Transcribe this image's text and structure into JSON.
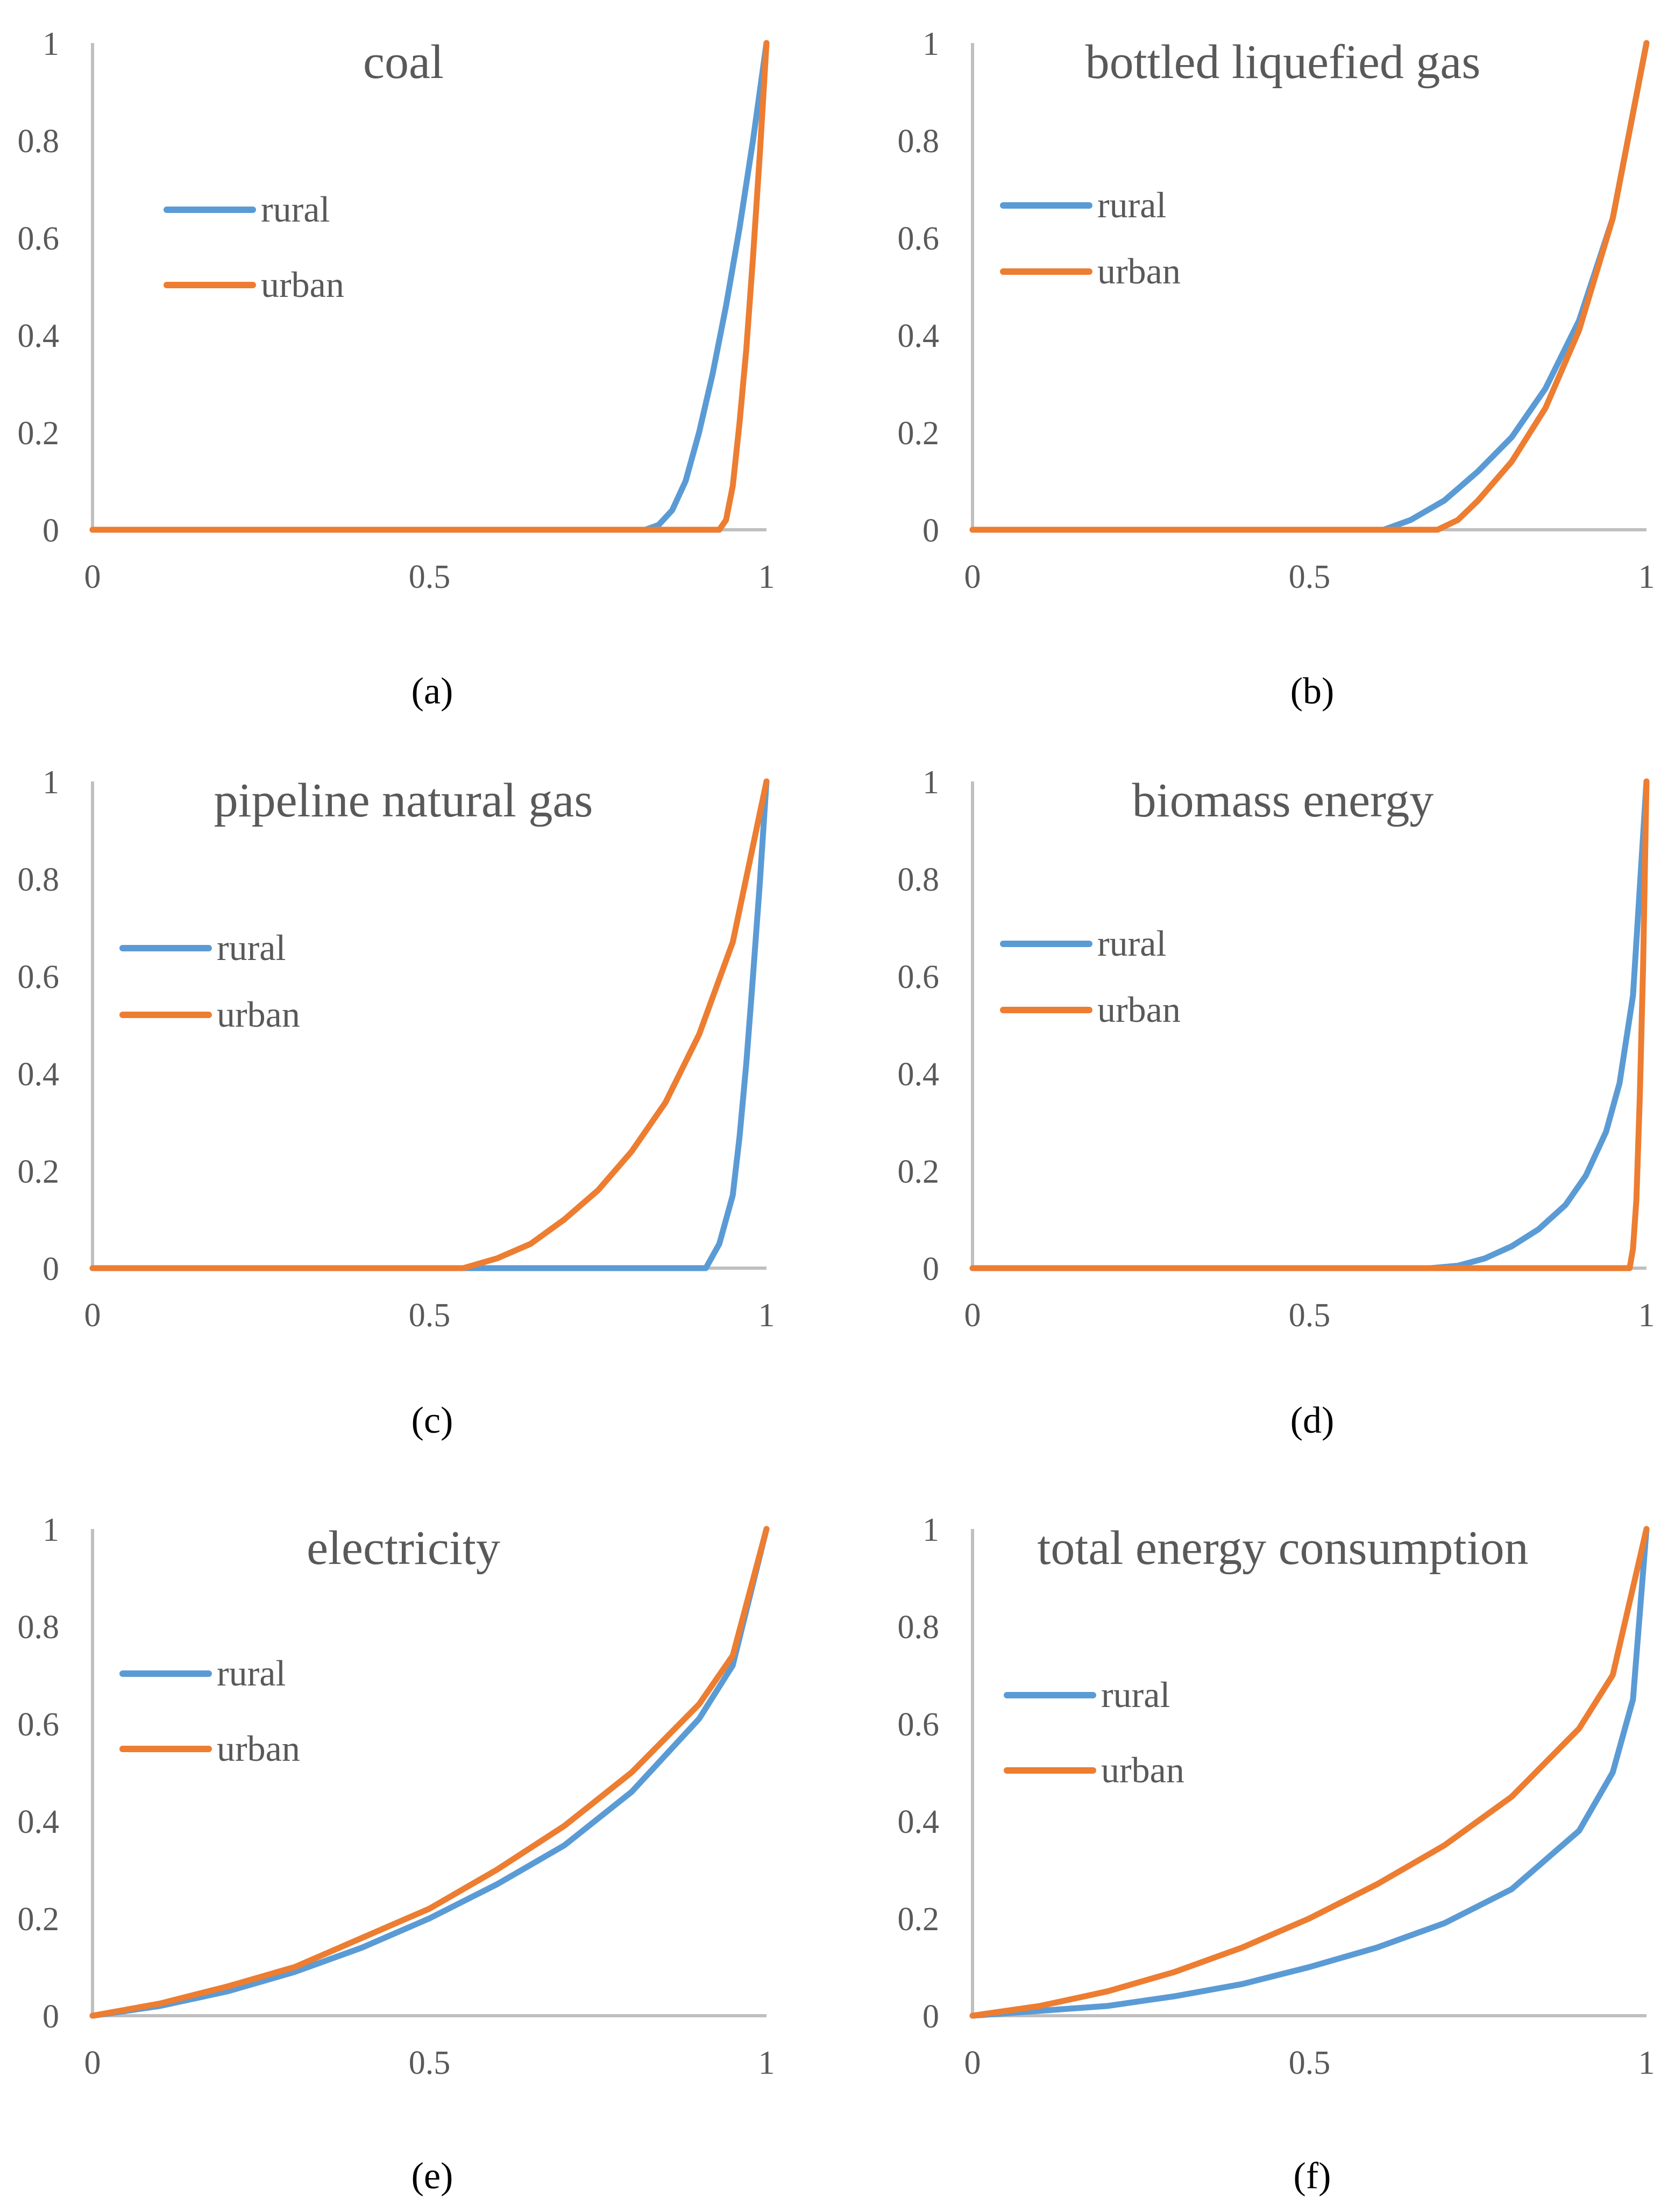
{
  "chart_data": [
    {
      "id": "a",
      "type": "line",
      "title": "coal",
      "caption": "(a)",
      "xlim": [
        0,
        1
      ],
      "ylim": [
        0,
        1
      ],
      "x_ticks": [
        "0",
        "0.5",
        "1"
      ],
      "y_ticks": [
        "0",
        "0.2",
        "0.4",
        "0.6",
        "0.8",
        "1"
      ],
      "legend": [
        "rural",
        "urban"
      ],
      "series": [
        {
          "name": "rural",
          "color": "#5b9bd5",
          "x": [
            0,
            0.82,
            0.84,
            0.86,
            0.88,
            0.9,
            0.92,
            0.94,
            0.96,
            0.98,
            1.0
          ],
          "y": [
            0,
            0,
            0.01,
            0.04,
            0.1,
            0.2,
            0.32,
            0.46,
            0.62,
            0.8,
            1.0
          ]
        },
        {
          "name": "urban",
          "color": "#ed7d31",
          "x": [
            0,
            0.93,
            0.94,
            0.95,
            0.96,
            0.97,
            0.98,
            0.99,
            1.0
          ],
          "y": [
            0,
            0,
            0.02,
            0.09,
            0.22,
            0.37,
            0.56,
            0.77,
            1.0
          ]
        }
      ]
    },
    {
      "id": "b",
      "type": "line",
      "title": "bottled liquefied gas",
      "caption": "(b)",
      "xlim": [
        0,
        1
      ],
      "ylim": [
        0,
        1
      ],
      "x_ticks": [
        "0",
        "0.5",
        "1"
      ],
      "y_ticks": [
        "0",
        "0.2",
        "0.4",
        "0.6",
        "0.8",
        "1"
      ],
      "legend": [
        "rural",
        "urban"
      ],
      "series": [
        {
          "name": "rural",
          "color": "#5b9bd5",
          "x": [
            0,
            0.61,
            0.65,
            0.7,
            0.75,
            0.8,
            0.85,
            0.9,
            0.95,
            1.0
          ],
          "y": [
            0,
            0,
            0.02,
            0.06,
            0.12,
            0.19,
            0.29,
            0.43,
            0.64,
            1.0
          ]
        },
        {
          "name": "urban",
          "color": "#ed7d31",
          "x": [
            0,
            0.69,
            0.72,
            0.75,
            0.8,
            0.85,
            0.9,
            0.95,
            1.0
          ],
          "y": [
            0,
            0,
            0.02,
            0.06,
            0.14,
            0.25,
            0.41,
            0.64,
            1.0
          ]
        }
      ]
    },
    {
      "id": "c",
      "type": "line",
      "title": "pipeline natural gas",
      "caption": "(c)",
      "xlim": [
        0,
        1
      ],
      "ylim": [
        0,
        1
      ],
      "x_ticks": [
        "0",
        "0.5",
        "1"
      ],
      "y_ticks": [
        "0",
        "0.2",
        "0.4",
        "0.6",
        "0.8",
        "1"
      ],
      "legend": [
        "rural",
        "urban"
      ],
      "series": [
        {
          "name": "rural",
          "color": "#5b9bd5",
          "x": [
            0,
            0.91,
            0.93,
            0.95,
            0.96,
            0.97,
            0.98,
            0.99,
            1.0
          ],
          "y": [
            0,
            0,
            0.05,
            0.15,
            0.27,
            0.42,
            0.6,
            0.79,
            1.0
          ]
        },
        {
          "name": "urban",
          "color": "#ed7d31",
          "x": [
            0,
            0.55,
            0.6,
            0.65,
            0.7,
            0.75,
            0.8,
            0.85,
            0.9,
            0.95,
            1.0
          ],
          "y": [
            0,
            0,
            0.02,
            0.05,
            0.1,
            0.16,
            0.24,
            0.34,
            0.48,
            0.67,
            1.0
          ]
        }
      ]
    },
    {
      "id": "d",
      "type": "line",
      "title": "biomass energy",
      "caption": "(d)",
      "xlim": [
        0,
        1
      ],
      "ylim": [
        0,
        1
      ],
      "x_ticks": [
        "0",
        "0.5",
        "1"
      ],
      "y_ticks": [
        "0",
        "0.2",
        "0.4",
        "0.6",
        "0.8",
        "1"
      ],
      "legend": [
        "rural",
        "urban"
      ],
      "series": [
        {
          "name": "rural",
          "color": "#5b9bd5",
          "x": [
            0,
            0.68,
            0.72,
            0.76,
            0.8,
            0.84,
            0.88,
            0.91,
            0.94,
            0.96,
            0.98,
            1.0
          ],
          "y": [
            0,
            0,
            0.005,
            0.02,
            0.045,
            0.08,
            0.13,
            0.19,
            0.28,
            0.38,
            0.56,
            1.0
          ]
        },
        {
          "name": "urban",
          "color": "#ed7d31",
          "x": [
            0,
            0.975,
            0.98,
            0.985,
            0.99,
            0.995,
            1.0
          ],
          "y": [
            0,
            0,
            0.04,
            0.14,
            0.35,
            0.62,
            1.0
          ]
        }
      ]
    },
    {
      "id": "e",
      "type": "line",
      "title": "electricity",
      "caption": "(e)",
      "xlim": [
        0,
        1
      ],
      "ylim": [
        0,
        1
      ],
      "x_ticks": [
        "0",
        "0.5",
        "1"
      ],
      "y_ticks": [
        "0",
        "0.2",
        "0.4",
        "0.6",
        "0.8",
        "1"
      ],
      "legend": [
        "rural",
        "urban"
      ],
      "series": [
        {
          "name": "rural",
          "color": "#5b9bd5",
          "x": [
            0,
            0.1,
            0.2,
            0.3,
            0.4,
            0.5,
            0.6,
            0.7,
            0.8,
            0.9,
            0.95,
            1.0
          ],
          "y": [
            0,
            0.02,
            0.05,
            0.09,
            0.14,
            0.2,
            0.27,
            0.35,
            0.46,
            0.61,
            0.72,
            1.0
          ]
        },
        {
          "name": "urban",
          "color": "#ed7d31",
          "x": [
            0,
            0.1,
            0.2,
            0.3,
            0.4,
            0.5,
            0.6,
            0.7,
            0.8,
            0.9,
            0.95,
            1.0
          ],
          "y": [
            0,
            0.025,
            0.06,
            0.1,
            0.16,
            0.22,
            0.3,
            0.39,
            0.5,
            0.64,
            0.74,
            1.0
          ]
        }
      ]
    },
    {
      "id": "f",
      "type": "line",
      "title": "total energy consumption",
      "caption": "(f)",
      "xlim": [
        0,
        1
      ],
      "ylim": [
        0,
        1
      ],
      "x_ticks": [
        "0",
        "0.5",
        "1"
      ],
      "y_ticks": [
        "0",
        "0.2",
        "0.4",
        "0.6",
        "0.8",
        "1"
      ],
      "legend": [
        "rural",
        "urban"
      ],
      "series": [
        {
          "name": "rural",
          "color": "#5b9bd5",
          "x": [
            0,
            0.1,
            0.2,
            0.3,
            0.4,
            0.5,
            0.6,
            0.7,
            0.8,
            0.9,
            0.95,
            0.98,
            1.0
          ],
          "y": [
            0,
            0.01,
            0.02,
            0.04,
            0.065,
            0.1,
            0.14,
            0.19,
            0.26,
            0.38,
            0.5,
            0.65,
            1.0
          ]
        },
        {
          "name": "urban",
          "color": "#ed7d31",
          "x": [
            0,
            0.1,
            0.2,
            0.3,
            0.4,
            0.5,
            0.6,
            0.7,
            0.8,
            0.9,
            0.95,
            1.0
          ],
          "y": [
            0,
            0.02,
            0.05,
            0.09,
            0.14,
            0.2,
            0.27,
            0.35,
            0.45,
            0.59,
            0.7,
            1.0
          ]
        }
      ]
    }
  ]
}
